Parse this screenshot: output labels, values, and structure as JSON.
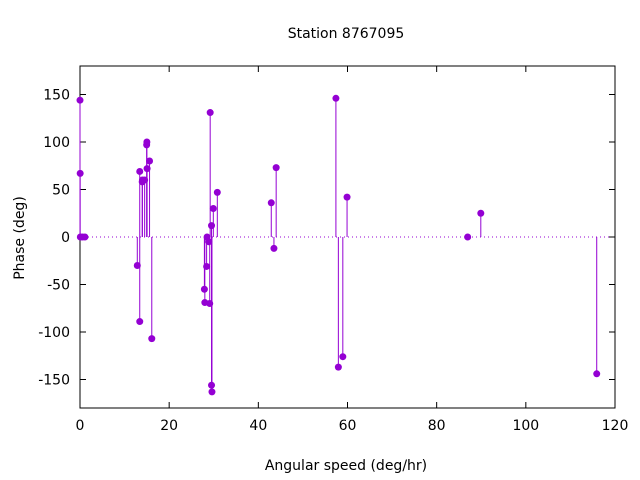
{
  "chart_data": {
    "type": "stem",
    "title": "Station 8767095",
    "xlabel": "Angular speed (deg/hr)",
    "ylabel": "Phase (deg)",
    "xlim": [
      0,
      120
    ],
    "ylim": [
      -180,
      180
    ],
    "xticks": [
      0,
      20,
      40,
      60,
      80,
      100,
      120
    ],
    "yticks": [
      -150,
      -100,
      -50,
      0,
      50,
      100,
      150
    ],
    "grid": false,
    "zero_line": "dotted",
    "series_color": "#9400d3",
    "points": [
      {
        "x": 0.0,
        "y": 144
      },
      {
        "x": 0.04,
        "y": 67
      },
      {
        "x": 0.08,
        "y": 0
      },
      {
        "x": 0.55,
        "y": 0
      },
      {
        "x": 1.1,
        "y": 0
      },
      {
        "x": 12.85,
        "y": -30
      },
      {
        "x": 13.4,
        "y": -89
      },
      {
        "x": 13.4,
        "y": 69
      },
      {
        "x": 13.95,
        "y": 58
      },
      {
        "x": 14.0,
        "y": 60
      },
      {
        "x": 14.5,
        "y": 60
      },
      {
        "x": 14.95,
        "y": 97
      },
      {
        "x": 15.0,
        "y": 100
      },
      {
        "x": 15.05,
        "y": 72
      },
      {
        "x": 15.6,
        "y": 80
      },
      {
        "x": 16.1,
        "y": -107
      },
      {
        "x": 27.9,
        "y": -55
      },
      {
        "x": 28.0,
        "y": -69
      },
      {
        "x": 28.4,
        "y": -31
      },
      {
        "x": 28.5,
        "y": 0
      },
      {
        "x": 28.9,
        "y": -5
      },
      {
        "x": 29.1,
        "y": -70
      },
      {
        "x": 29.2,
        "y": 131
      },
      {
        "x": 29.5,
        "y": -156
      },
      {
        "x": 29.5,
        "y": 12
      },
      {
        "x": 29.6,
        "y": -163
      },
      {
        "x": 29.9,
        "y": 30
      },
      {
        "x": 30.8,
        "y": 47
      },
      {
        "x": 42.9,
        "y": 36
      },
      {
        "x": 43.5,
        "y": -12
      },
      {
        "x": 44.0,
        "y": 73
      },
      {
        "x": 57.4,
        "y": 146
      },
      {
        "x": 57.95,
        "y": -137
      },
      {
        "x": 58.95,
        "y": -126
      },
      {
        "x": 59.9,
        "y": 42
      },
      {
        "x": 86.95,
        "y": 0
      },
      {
        "x": 89.9,
        "y": 25
      },
      {
        "x": 115.9,
        "y": -144
      }
    ]
  }
}
